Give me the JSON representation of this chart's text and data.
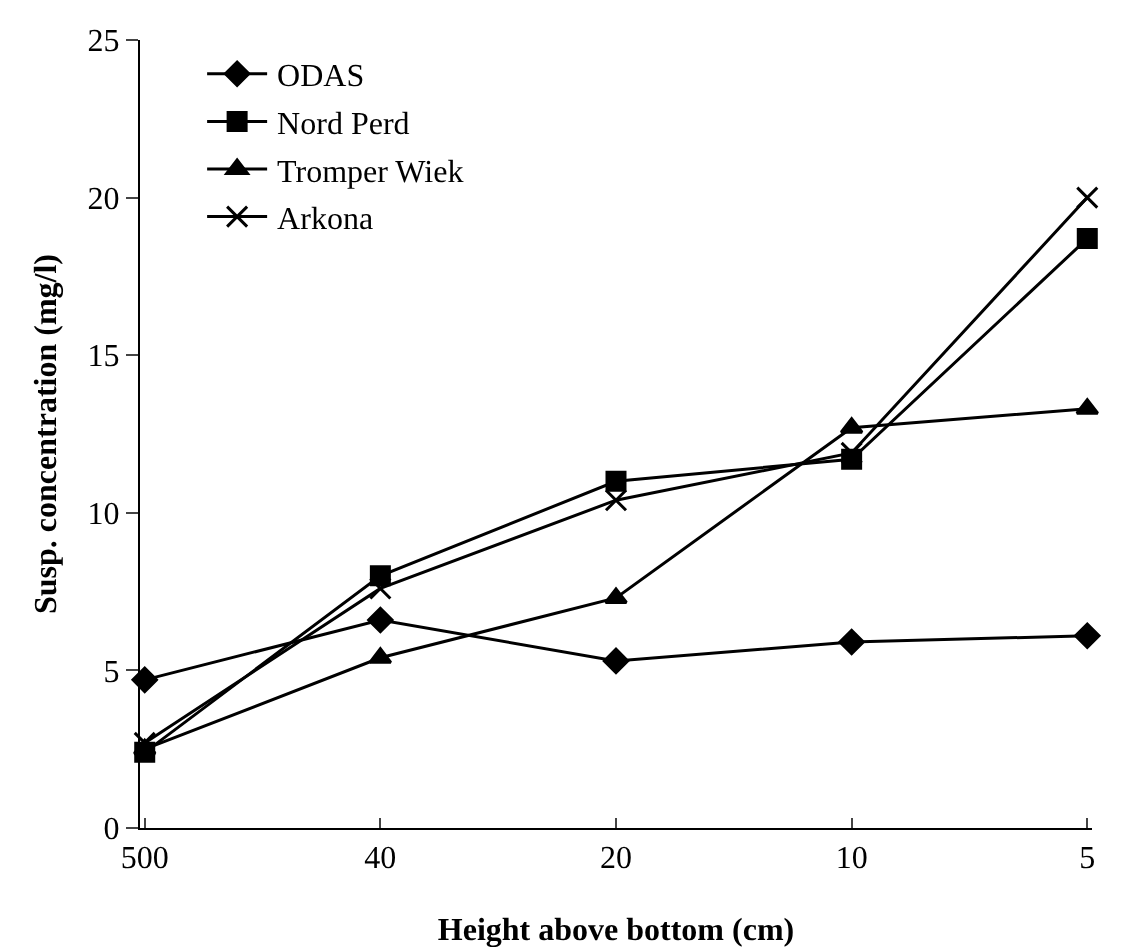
{
  "chart_data": {
    "type": "line",
    "xlabel": "Height above bottom (cm)",
    "ylabel": "Susp. concentration (mg/l)",
    "categories": [
      "500",
      "40",
      "20",
      "10",
      "5"
    ],
    "series": [
      {
        "name": "ODAS",
        "color": "#000000",
        "marker": "diamond",
        "values": [
          4.7,
          6.6,
          5.3,
          5.9,
          6.1
        ]
      },
      {
        "name": "Nord Perd",
        "color": "#000000",
        "marker": "square",
        "values": [
          2.4,
          8.0,
          11.0,
          11.7,
          18.7
        ]
      },
      {
        "name": "Tromper Wiek",
        "color": "#000000",
        "marker": "triangle",
        "values": [
          2.5,
          5.4,
          7.3,
          12.7,
          13.3
        ]
      },
      {
        "name": "Arkona",
        "color": "#000000",
        "marker": "cross",
        "values": [
          2.7,
          7.6,
          10.4,
          11.9,
          20.0
        ]
      }
    ],
    "ylim": [
      0,
      25
    ],
    "yticks": [
      0,
      5,
      10,
      15,
      20,
      25
    ],
    "grid": false,
    "legend": "top left",
    "line_style": "solid"
  }
}
